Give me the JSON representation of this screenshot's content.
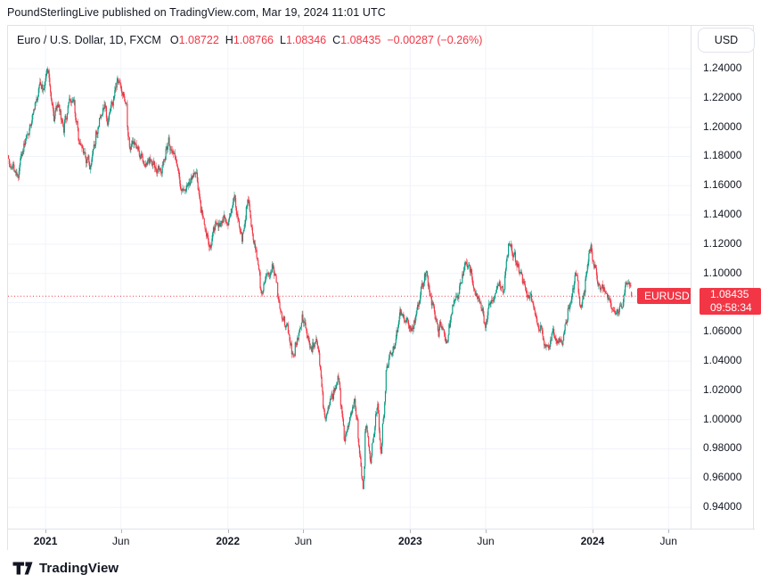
{
  "attribution": {
    "text": "PoundSterlingLive published on TradingView.com, Mar 19, 2024 11:01 UTC"
  },
  "legend": {
    "title": "Euro / U.S. Dollar, 1D, FXCM",
    "ohlc": [
      {
        "label": "O",
        "value": "1.08722"
      },
      {
        "label": "H",
        "value": "1.08766"
      },
      {
        "label": "L",
        "value": "1.08346"
      },
      {
        "label": "C",
        "value": "1.08435"
      }
    ],
    "change": "−0.00287 (−0.26%)"
  },
  "toolbar": {
    "currency_label": "USD"
  },
  "price_marker": {
    "symbol": "EURUSD",
    "price": "1.08435",
    "countdown": "09:58:34"
  },
  "footer": {
    "logo_text": "TradingView"
  },
  "colors": {
    "up": "#089981",
    "down": "#F23645",
    "accent_red": "#F23645",
    "text": "#131722",
    "grid": "#F0F3FA",
    "border": "#E0E3EB",
    "tick": "#B2B5BE"
  },
  "chart_data": {
    "type": "candlestick",
    "title": "Euro / U.S. Dollar",
    "symbol": "EURUSD",
    "timeframe": "1D",
    "exchange": "FXCM",
    "quote_currency": "USD",
    "last_bar": {
      "open": 1.08722,
      "high": 1.08766,
      "low": 1.08346,
      "close": 1.08435,
      "change": -0.00287,
      "change_pct": -0.26
    },
    "price_line": 1.08435,
    "ylim": [
      0.9254,
      1.2693
    ],
    "x_range": [
      "2020-10-18",
      "2024-07-17"
    ],
    "grid": true,
    "y_axis": {
      "ticks": [
        "1.24000",
        "1.22000",
        "1.20000",
        "1.18000",
        "1.16000",
        "1.14000",
        "1.12000",
        "1.10000",
        "1.08000",
        "1.06000",
        "1.04000",
        "1.02000",
        "1.00000",
        "0.98000",
        "0.96000",
        "0.94000"
      ]
    },
    "x_axis": {
      "start_date": "2020-10-19",
      "end_date": "2024-03-19",
      "labels": [
        {
          "text": "2021",
          "date": "2021-01-01",
          "major": true
        },
        {
          "text": "Jun",
          "date": "2021-06-01",
          "major": false
        },
        {
          "text": "2022",
          "date": "2022-01-01",
          "major": true
        },
        {
          "text": "Jun",
          "date": "2022-06-01",
          "major": false
        },
        {
          "text": "2023",
          "date": "2023-01-01",
          "major": true
        },
        {
          "text": "Jun",
          "date": "2023-06-01",
          "major": false
        },
        {
          "text": "2024",
          "date": "2024-01-01",
          "major": true
        },
        {
          "text": "Jun",
          "date": "2024-06-01",
          "major": false
        }
      ]
    },
    "price_path_anchors": [
      {
        "date": "2020-10-19",
        "price": 1.177
      },
      {
        "date": "2020-10-28",
        "price": 1.1745
      },
      {
        "date": "2020-11-04",
        "price": 1.164
      },
      {
        "date": "2020-11-13",
        "price": 1.183
      },
      {
        "date": "2020-12-01",
        "price": 1.207
      },
      {
        "date": "2020-12-17",
        "price": 1.227
      },
      {
        "date": "2021-01-06",
        "price": 1.2346
      },
      {
        "date": "2021-01-18",
        "price": 1.208
      },
      {
        "date": "2021-01-25",
        "price": 1.217
      },
      {
        "date": "2021-02-05",
        "price": 1.1965
      },
      {
        "date": "2021-02-25",
        "price": 1.2235
      },
      {
        "date": "2021-03-09",
        "price": 1.188
      },
      {
        "date": "2021-03-31",
        "price": 1.1715
      },
      {
        "date": "2021-04-20",
        "price": 1.208
      },
      {
        "date": "2021-04-29",
        "price": 1.2125
      },
      {
        "date": "2021-05-05",
        "price": 1.2005
      },
      {
        "date": "2021-05-25",
        "price": 1.2255
      },
      {
        "date": "2021-06-11",
        "price": 1.217
      },
      {
        "date": "2021-06-18",
        "price": 1.187
      },
      {
        "date": "2021-07-06",
        "price": 1.182
      },
      {
        "date": "2021-07-21",
        "price": 1.178
      },
      {
        "date": "2021-08-20",
        "price": 1.1675
      },
      {
        "date": "2021-09-03",
        "price": 1.1885
      },
      {
        "date": "2021-09-29",
        "price": 1.16
      },
      {
        "date": "2021-10-28",
        "price": 1.168
      },
      {
        "date": "2021-11-24",
        "price": 1.1205
      },
      {
        "date": "2021-12-08",
        "price": 1.134
      },
      {
        "date": "2021-12-31",
        "price": 1.137
      },
      {
        "date": "2022-01-14",
        "price": 1.145
      },
      {
        "date": "2022-01-28",
        "price": 1.115
      },
      {
        "date": "2022-02-10",
        "price": 1.1465
      },
      {
        "date": "2022-03-07",
        "price": 1.0855
      },
      {
        "date": "2022-03-31",
        "price": 1.1165
      },
      {
        "date": "2022-04-14",
        "price": 1.083
      },
      {
        "date": "2022-05-13",
        "price": 1.0385
      },
      {
        "date": "2022-05-30",
        "price": 1.0775
      },
      {
        "date": "2022-06-15",
        "price": 1.045
      },
      {
        "date": "2022-06-27",
        "price": 1.059
      },
      {
        "date": "2022-07-14",
        "price": 0.9975
      },
      {
        "date": "2022-08-10",
        "price": 1.033
      },
      {
        "date": "2022-08-23",
        "price": 0.9925
      },
      {
        "date": "2022-09-12",
        "price": 1.012
      },
      {
        "date": "2022-09-28",
        "price": 0.9565
      },
      {
        "date": "2022-10-04",
        "price": 0.998
      },
      {
        "date": "2022-10-13",
        "price": 0.9705
      },
      {
        "date": "2022-10-27",
        "price": 1.008
      },
      {
        "date": "2022-11-03",
        "price": 0.976
      },
      {
        "date": "2022-11-15",
        "price": 1.042
      },
      {
        "date": "2022-12-15",
        "price": 1.069
      },
      {
        "date": "2023-01-06",
        "price": 1.064
      },
      {
        "date": "2023-02-02",
        "price": 1.1
      },
      {
        "date": "2023-02-27",
        "price": 1.055
      },
      {
        "date": "2023-03-01",
        "price": 1.066
      },
      {
        "date": "2023-03-15",
        "price": 1.0545
      },
      {
        "date": "2023-04-14",
        "price": 1.104
      },
      {
        "date": "2023-04-26",
        "price": 1.106
      },
      {
        "date": "2023-05-31",
        "price": 1.069
      },
      {
        "date": "2023-06-22",
        "price": 1.0955
      },
      {
        "date": "2023-07-06",
        "price": 1.086
      },
      {
        "date": "2023-07-18",
        "price": 1.125
      },
      {
        "date": "2023-08-18",
        "price": 1.087
      },
      {
        "date": "2023-09-20",
        "price": 1.066
      },
      {
        "date": "2023-10-03",
        "price": 1.047
      },
      {
        "date": "2023-10-12",
        "price": 1.062
      },
      {
        "date": "2023-10-18",
        "price": 1.054
      },
      {
        "date": "2023-11-01",
        "price": 1.057
      },
      {
        "date": "2023-11-29",
        "price": 1.1
      },
      {
        "date": "2023-12-08",
        "price": 1.076
      },
      {
        "date": "2023-12-28",
        "price": 1.112
      },
      {
        "date": "2024-01-17",
        "price": 1.0875
      },
      {
        "date": "2024-02-05",
        "price": 1.074
      },
      {
        "date": "2024-02-14",
        "price": 1.0705
      },
      {
        "date": "2024-03-08",
        "price": 1.095
      },
      {
        "date": "2024-03-19",
        "price": 1.0844
      }
    ]
  }
}
